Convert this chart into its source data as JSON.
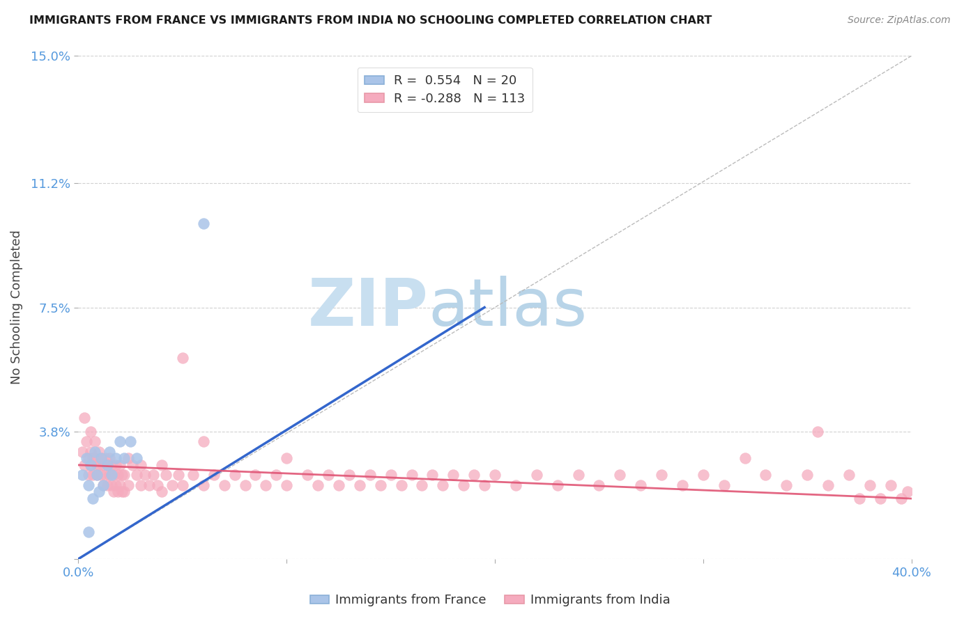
{
  "title": "IMMIGRANTS FROM FRANCE VS IMMIGRANTS FROM INDIA NO SCHOOLING COMPLETED CORRELATION CHART",
  "source": "Source: ZipAtlas.com",
  "ylabel": "No Schooling Completed",
  "xlim": [
    0.0,
    0.4
  ],
  "ylim": [
    0.0,
    0.15
  ],
  "xticks": [
    0.0,
    0.1,
    0.2,
    0.3,
    0.4
  ],
  "xtick_labels": [
    "0.0%",
    "",
    "",
    "",
    "40.0%"
  ],
  "ytick_labels": [
    "",
    "3.8%",
    "7.5%",
    "11.2%",
    "15.0%"
  ],
  "yticks": [
    0.0,
    0.038,
    0.075,
    0.112,
    0.15
  ],
  "legend_france_label": "R =  0.554   N = 20",
  "legend_india_label": "R = -0.288   N = 113",
  "france_color": "#aac4e8",
  "india_color": "#f5abbe",
  "france_line_color": "#3366cc",
  "india_line_color": "#e05575",
  "diagonal_color": "#bbbbbb",
  "background_color": "#ffffff",
  "watermark_zip": "ZIP",
  "watermark_atlas": "atlas",
  "watermark_color_zip": "#c8dff0",
  "watermark_color_atlas": "#b8d4e8",
  "france_R": 0.554,
  "france_N": 20,
  "india_R": -0.288,
  "india_N": 113,
  "france_line_x": [
    0.0,
    0.195
  ],
  "france_line_y": [
    0.0,
    0.075
  ],
  "india_line_x": [
    0.0,
    0.4
  ],
  "india_line_y": [
    0.028,
    0.018
  ],
  "france_scatter": [
    [
      0.002,
      0.025
    ],
    [
      0.004,
      0.03
    ],
    [
      0.005,
      0.022
    ],
    [
      0.006,
      0.028
    ],
    [
      0.007,
      0.018
    ],
    [
      0.008,
      0.032
    ],
    [
      0.009,
      0.025
    ],
    [
      0.01,
      0.02
    ],
    [
      0.011,
      0.03
    ],
    [
      0.012,
      0.022
    ],
    [
      0.014,
      0.028
    ],
    [
      0.015,
      0.032
    ],
    [
      0.016,
      0.025
    ],
    [
      0.018,
      0.03
    ],
    [
      0.02,
      0.035
    ],
    [
      0.022,
      0.03
    ],
    [
      0.025,
      0.035
    ],
    [
      0.028,
      0.03
    ],
    [
      0.06,
      0.1
    ],
    [
      0.005,
      0.008
    ]
  ],
  "india_scatter": [
    [
      0.002,
      0.032
    ],
    [
      0.003,
      0.028
    ],
    [
      0.004,
      0.035
    ],
    [
      0.005,
      0.03
    ],
    [
      0.005,
      0.025
    ],
    [
      0.006,
      0.032
    ],
    [
      0.006,
      0.028
    ],
    [
      0.007,
      0.03
    ],
    [
      0.007,
      0.025
    ],
    [
      0.008,
      0.035
    ],
    [
      0.008,
      0.03
    ],
    [
      0.009,
      0.028
    ],
    [
      0.009,
      0.025
    ],
    [
      0.01,
      0.032
    ],
    [
      0.01,
      0.028
    ],
    [
      0.011,
      0.03
    ],
    [
      0.011,
      0.025
    ],
    [
      0.012,
      0.028
    ],
    [
      0.012,
      0.022
    ],
    [
      0.013,
      0.03
    ],
    [
      0.013,
      0.025
    ],
    [
      0.014,
      0.028
    ],
    [
      0.014,
      0.022
    ],
    [
      0.015,
      0.03
    ],
    [
      0.015,
      0.025
    ],
    [
      0.016,
      0.028
    ],
    [
      0.016,
      0.022
    ],
    [
      0.017,
      0.025
    ],
    [
      0.017,
      0.02
    ],
    [
      0.018,
      0.028
    ],
    [
      0.018,
      0.022
    ],
    [
      0.019,
      0.025
    ],
    [
      0.019,
      0.02
    ],
    [
      0.02,
      0.028
    ],
    [
      0.02,
      0.022
    ],
    [
      0.021,
      0.025
    ],
    [
      0.021,
      0.02
    ],
    [
      0.022,
      0.025
    ],
    [
      0.022,
      0.02
    ],
    [
      0.024,
      0.03
    ],
    [
      0.024,
      0.022
    ],
    [
      0.026,
      0.028
    ],
    [
      0.028,
      0.025
    ],
    [
      0.03,
      0.028
    ],
    [
      0.03,
      0.022
    ],
    [
      0.032,
      0.025
    ],
    [
      0.034,
      0.022
    ],
    [
      0.036,
      0.025
    ],
    [
      0.038,
      0.022
    ],
    [
      0.04,
      0.028
    ],
    [
      0.04,
      0.02
    ],
    [
      0.042,
      0.025
    ],
    [
      0.045,
      0.022
    ],
    [
      0.048,
      0.025
    ],
    [
      0.05,
      0.022
    ],
    [
      0.05,
      0.06
    ],
    [
      0.055,
      0.025
    ],
    [
      0.06,
      0.022
    ],
    [
      0.06,
      0.035
    ],
    [
      0.065,
      0.025
    ],
    [
      0.07,
      0.022
    ],
    [
      0.075,
      0.025
    ],
    [
      0.08,
      0.022
    ],
    [
      0.085,
      0.025
    ],
    [
      0.09,
      0.022
    ],
    [
      0.095,
      0.025
    ],
    [
      0.1,
      0.03
    ],
    [
      0.1,
      0.022
    ],
    [
      0.11,
      0.025
    ],
    [
      0.115,
      0.022
    ],
    [
      0.12,
      0.025
    ],
    [
      0.125,
      0.022
    ],
    [
      0.13,
      0.025
    ],
    [
      0.135,
      0.022
    ],
    [
      0.14,
      0.025
    ],
    [
      0.145,
      0.022
    ],
    [
      0.15,
      0.025
    ],
    [
      0.155,
      0.022
    ],
    [
      0.16,
      0.025
    ],
    [
      0.165,
      0.022
    ],
    [
      0.17,
      0.025
    ],
    [
      0.175,
      0.022
    ],
    [
      0.18,
      0.025
    ],
    [
      0.185,
      0.022
    ],
    [
      0.19,
      0.025
    ],
    [
      0.195,
      0.022
    ],
    [
      0.2,
      0.025
    ],
    [
      0.21,
      0.022
    ],
    [
      0.22,
      0.025
    ],
    [
      0.23,
      0.022
    ],
    [
      0.24,
      0.025
    ],
    [
      0.25,
      0.022
    ],
    [
      0.26,
      0.025
    ],
    [
      0.27,
      0.022
    ],
    [
      0.28,
      0.025
    ],
    [
      0.29,
      0.022
    ],
    [
      0.3,
      0.025
    ],
    [
      0.31,
      0.022
    ],
    [
      0.32,
      0.03
    ],
    [
      0.33,
      0.025
    ],
    [
      0.34,
      0.022
    ],
    [
      0.35,
      0.025
    ],
    [
      0.355,
      0.038
    ],
    [
      0.36,
      0.022
    ],
    [
      0.37,
      0.025
    ],
    [
      0.375,
      0.018
    ],
    [
      0.38,
      0.022
    ],
    [
      0.385,
      0.018
    ],
    [
      0.39,
      0.022
    ],
    [
      0.395,
      0.018
    ],
    [
      0.398,
      0.02
    ],
    [
      0.003,
      0.042
    ],
    [
      0.006,
      0.038
    ]
  ]
}
